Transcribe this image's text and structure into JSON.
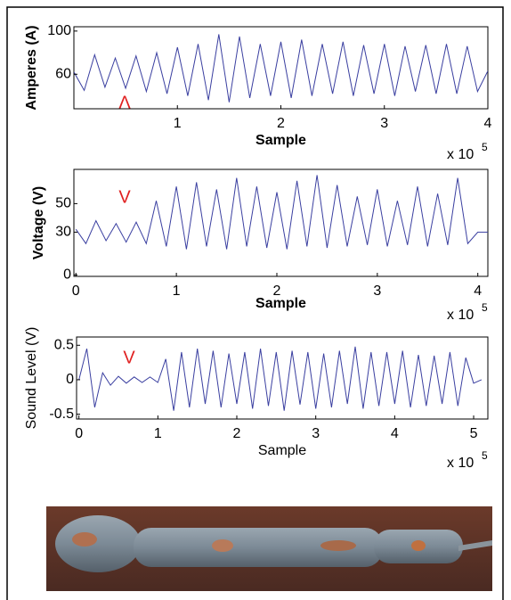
{
  "chart_data": [
    {
      "type": "line",
      "x_label": "Sample",
      "y_label": "Amperes (A)",
      "x_multiplier": "x 10",
      "x_multiplier_exp": "5",
      "annotation": "Λ",
      "xlim": [
        0,
        4
      ],
      "ylim": [
        28,
        104
      ],
      "xticks": [
        1,
        2,
        3,
        4
      ],
      "yticks": [
        60,
        100
      ],
      "x": [
        0,
        0.1,
        0.2,
        0.3,
        0.4,
        0.5,
        0.6,
        0.7,
        0.8,
        0.9,
        1.0,
        1.1,
        1.2,
        1.3,
        1.4,
        1.5,
        1.6,
        1.7,
        1.8,
        1.9,
        2.0,
        2.1,
        2.2,
        2.3,
        2.4,
        2.5,
        2.6,
        2.7,
        2.8,
        2.9,
        3.0,
        3.1,
        3.2,
        3.3,
        3.4,
        3.5,
        3.6,
        3.7,
        3.8,
        3.9,
        4.0
      ],
      "series": [
        {
          "color": "#3a3fa0",
          "values": [
            62,
            45,
            78,
            48,
            75,
            47,
            77,
            44,
            80,
            42,
            85,
            40,
            88,
            36,
            97,
            34,
            95,
            38,
            88,
            40,
            90,
            38,
            92,
            40,
            88,
            42,
            90,
            40,
            87,
            42,
            88,
            40,
            86,
            44,
            87,
            42,
            88,
            42,
            86,
            44,
            63
          ]
        }
      ],
      "annotation_color": "#e02020"
    },
    {
      "type": "line",
      "x_label": "Sample",
      "y_label": "Voltage (V)",
      "x_multiplier": "x 10",
      "x_multiplier_exp": "5",
      "annotation": "V",
      "xlim": [
        -0.02,
        4.1
      ],
      "ylim": [
        -1,
        74
      ],
      "xticks": [
        0,
        1,
        2,
        3,
        4
      ],
      "yticks": [
        0,
        30,
        50
      ],
      "x": [
        0,
        0.1,
        0.2,
        0.3,
        0.4,
        0.5,
        0.6,
        0.7,
        0.8,
        0.9,
        1.0,
        1.1,
        1.2,
        1.3,
        1.4,
        1.5,
        1.6,
        1.7,
        1.8,
        1.9,
        2.0,
        2.1,
        2.2,
        2.3,
        2.4,
        2.5,
        2.6,
        2.7,
        2.8,
        2.9,
        3.0,
        3.1,
        3.2,
        3.3,
        3.4,
        3.5,
        3.6,
        3.7,
        3.8,
        3.9,
        4.0,
        4.1
      ],
      "series": [
        {
          "color": "#3a3fa0",
          "values": [
            32,
            22,
            38,
            24,
            36,
            23,
            37,
            22,
            52,
            20,
            62,
            18,
            65,
            20,
            60,
            18,
            68,
            20,
            62,
            19,
            58,
            18,
            66,
            20,
            70,
            19,
            63,
            20,
            55,
            21,
            60,
            20,
            52,
            21,
            62,
            20,
            57,
            21,
            68,
            22,
            30,
            30
          ]
        }
      ],
      "annotation_color": "#e02020"
    },
    {
      "type": "line",
      "x_label": "Sample",
      "y_label": "Sound Level (V)",
      "x_multiplier": "x 10",
      "x_multiplier_exp": "5",
      "annotation": "V",
      "xlim": [
        -0.03,
        5.18
      ],
      "ylim": [
        -0.57,
        0.62
      ],
      "xticks": [
        0,
        1,
        2,
        3,
        4,
        5
      ],
      "yticks": [
        -0.5,
        0,
        0.5
      ],
      "x": [
        0,
        0.1,
        0.2,
        0.3,
        0.4,
        0.5,
        0.6,
        0.7,
        0.8,
        0.9,
        1.0,
        1.1,
        1.2,
        1.3,
        1.4,
        1.5,
        1.6,
        1.7,
        1.8,
        1.9,
        2.0,
        2.1,
        2.2,
        2.3,
        2.4,
        2.5,
        2.6,
        2.7,
        2.8,
        2.9,
        3.0,
        3.1,
        3.2,
        3.3,
        3.4,
        3.5,
        3.6,
        3.7,
        3.8,
        3.9,
        4.0,
        4.1,
        4.2,
        4.3,
        4.4,
        4.5,
        4.6,
        4.7,
        4.8,
        4.9,
        5.0,
        5.1
      ],
      "series": [
        {
          "color": "#3a3fa0",
          "values": [
            0,
            0.45,
            -0.4,
            0.1,
            -0.08,
            0.05,
            -0.05,
            0.04,
            -0.04,
            0.04,
            -0.04,
            0.3,
            -0.45,
            0.4,
            -0.4,
            0.45,
            -0.35,
            0.42,
            -0.4,
            0.38,
            -0.35,
            0.4,
            -0.42,
            0.45,
            -0.38,
            0.4,
            -0.45,
            0.42,
            -0.36,
            0.4,
            -0.42,
            0.38,
            -0.4,
            0.42,
            -0.35,
            0.48,
            -0.42,
            0.4,
            -0.38,
            0.4,
            -0.35,
            0.42,
            -0.4,
            0.36,
            -0.38,
            0.35,
            -0.35,
            0.4,
            -0.38,
            0.32,
            -0.05,
            0
          ]
        }
      ],
      "annotation_color": "#e02020"
    }
  ]
}
